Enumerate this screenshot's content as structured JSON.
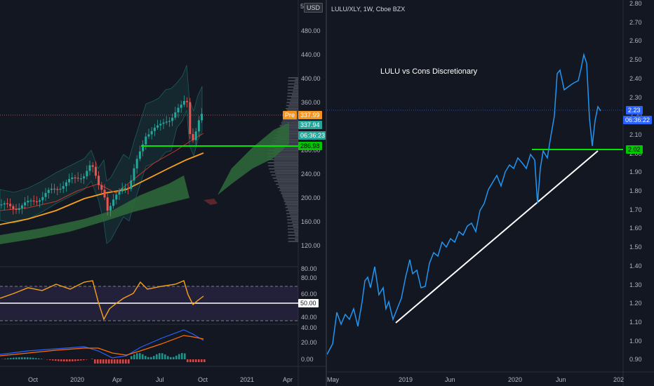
{
  "left_chart": {
    "currency": "USD",
    "scale_marker": "5",
    "price_axis": [
      "480.00",
      "440.00",
      "400.00",
      "360.00",
      "320.00",
      "280.00",
      "240.00",
      "200.00",
      "160.00",
      "120.00"
    ],
    "rsi_axis": [
      "80.00",
      "80.00",
      "60.00",
      "40.00",
      "40.00"
    ],
    "rsi_level_label": "50.00",
    "macd_axis": [
      "20.00",
      "0.00"
    ],
    "time_axis": [
      "Oct",
      "2020",
      "Apr",
      "Jul",
      "Oct",
      "2021",
      "Apr"
    ],
    "badges": {
      "pre_label": "Pre",
      "pre_price": "337.99",
      "last_price": "337.94",
      "countdown": "06:36:23",
      "level": "286.98"
    },
    "colors": {
      "up": "#26a69a",
      "down": "#ef5350",
      "ma_orange": "#f7a21b",
      "level_green": "#00e600",
      "cloud": "#2e6b3a",
      "rsi": "#f7a21b",
      "macd": "#2962ff"
    }
  },
  "right_chart": {
    "legend": "LULU/XLY, 1W, Cboe BZX",
    "annotation": "LULU vs Cons Discretionary",
    "price_axis": [
      "2.80",
      "2.70",
      "2.60",
      "2.50",
      "2.40",
      "2.30",
      "2.20",
      "2.10",
      "2.00",
      "1.90",
      "1.80",
      "1.70",
      "1.60",
      "1.50",
      "1.40",
      "1.30",
      "1.20",
      "1.10",
      "1.00",
      "0.90"
    ],
    "time_axis": [
      "May",
      "2019",
      "Jun",
      "2020",
      "Jun",
      "202"
    ],
    "badges": {
      "last_value": "2.23",
      "countdown": "06:36:22",
      "level": "2.02"
    },
    "colors": {
      "line": "#2196f3",
      "trendline": "#ffffff",
      "level_green": "#00e600",
      "badge_blue": "#2962ff"
    }
  }
}
